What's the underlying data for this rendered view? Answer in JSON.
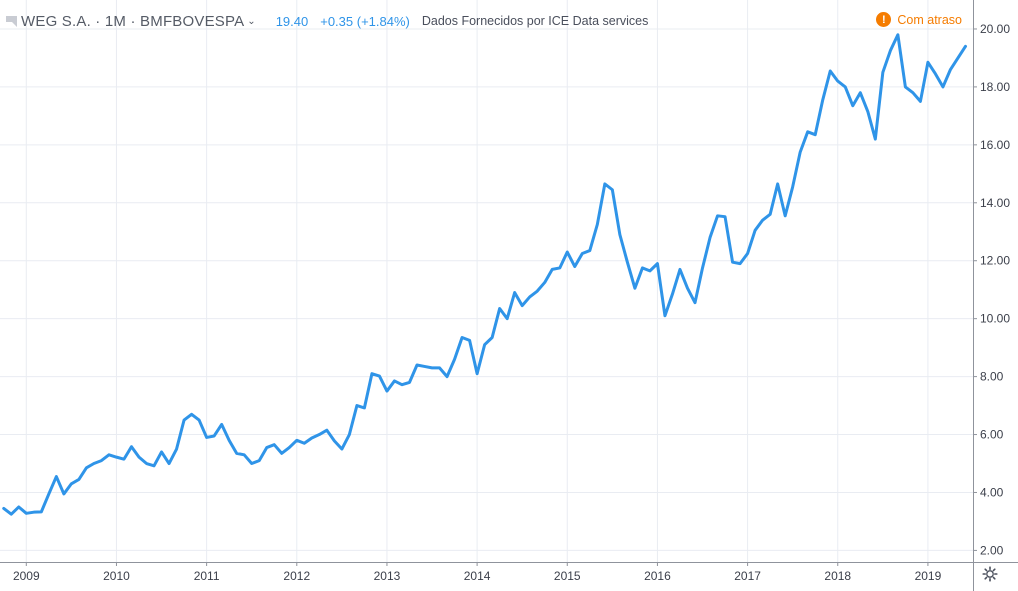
{
  "header": {
    "symbol_title": "WEG S.A. · 1M · BMFBOVESPA",
    "price": "19.40",
    "change": "+0.35 (+1.84%)",
    "provider": "Dados Fornecidos por ICE Data services",
    "delay_label": "Com atraso",
    "delay_icon": "!",
    "flag_icon_name": "flag-icon",
    "caret_icon_name": "chevron-down-icon"
  },
  "colors": {
    "line": "#2f94e8",
    "grid": "#e9ecf2",
    "axis_border": "#8f939c",
    "delay": "#f57c00",
    "text": "#3b3f4a"
  },
  "chart_data": {
    "type": "line",
    "title": "",
    "xlabel": "",
    "ylabel": "",
    "x_range": [
      "2008-10",
      "2019-07"
    ],
    "ylim": [
      1.6,
      21.0
    ],
    "y_ticks": [
      "2.00",
      "4.00",
      "6.00",
      "8.00",
      "10.00",
      "12.00",
      "14.00",
      "16.00",
      "18.00",
      "20.00"
    ],
    "x_ticks": [
      "2009",
      "2010",
      "2011",
      "2012",
      "2013",
      "2014",
      "2015",
      "2016",
      "2017",
      "2018",
      "2019"
    ],
    "grid": true,
    "y_axis_position": "right",
    "series": [
      {
        "x": [
          "2008-10",
          "2008-11",
          "2008-12",
          "2009-01",
          "2009-02",
          "2009-03",
          "2009-04",
          "2009-05",
          "2009-06",
          "2009-07",
          "2009-08",
          "2009-09",
          "2009-10",
          "2009-11",
          "2009-12",
          "2010-01",
          "2010-02",
          "2010-03",
          "2010-04",
          "2010-05",
          "2010-06",
          "2010-07",
          "2010-08",
          "2010-09",
          "2010-10",
          "2010-11",
          "2010-12",
          "2011-01",
          "2011-02",
          "2011-03",
          "2011-04",
          "2011-05",
          "2011-06",
          "2011-07",
          "2011-08",
          "2011-09",
          "2011-10",
          "2011-11",
          "2011-12",
          "2012-01",
          "2012-02",
          "2012-03",
          "2012-04",
          "2012-05",
          "2012-06",
          "2012-07",
          "2012-08",
          "2012-09",
          "2012-10",
          "2012-11",
          "2012-12",
          "2013-01",
          "2013-02",
          "2013-03",
          "2013-04",
          "2013-05",
          "2013-06",
          "2013-07",
          "2013-08",
          "2013-09",
          "2013-10",
          "2013-11",
          "2013-12",
          "2014-01",
          "2014-02",
          "2014-03",
          "2014-04",
          "2014-05",
          "2014-06",
          "2014-07",
          "2014-08",
          "2014-09",
          "2014-10",
          "2014-11",
          "2014-12",
          "2015-01",
          "2015-02",
          "2015-03",
          "2015-04",
          "2015-05",
          "2015-06",
          "2015-07",
          "2015-08",
          "2015-09",
          "2015-10",
          "2015-11",
          "2015-12",
          "2016-01",
          "2016-02",
          "2016-03",
          "2016-04",
          "2016-05",
          "2016-06",
          "2016-07",
          "2016-08",
          "2016-09",
          "2016-10",
          "2016-11",
          "2016-12",
          "2017-01",
          "2017-02",
          "2017-03",
          "2017-04",
          "2017-05",
          "2017-06",
          "2017-07",
          "2017-08",
          "2017-09",
          "2017-10",
          "2017-11",
          "2017-12",
          "2018-01",
          "2018-02",
          "2018-03",
          "2018-04",
          "2018-05",
          "2018-06",
          "2018-07",
          "2018-08",
          "2018-09",
          "2018-10",
          "2018-11",
          "2018-12",
          "2019-01",
          "2019-02",
          "2019-03",
          "2019-04",
          "2019-05",
          "2019-06"
        ],
        "values": [
          3.45,
          3.25,
          3.5,
          3.28,
          3.32,
          3.33,
          3.95,
          4.55,
          3.95,
          4.3,
          4.45,
          4.85,
          5.0,
          5.1,
          5.3,
          5.22,
          5.15,
          5.58,
          5.22,
          5.0,
          4.92,
          5.4,
          5.0,
          5.5,
          6.5,
          6.7,
          6.5,
          5.9,
          5.95,
          6.35,
          5.8,
          5.35,
          5.3,
          5.0,
          5.1,
          5.55,
          5.65,
          5.35,
          5.55,
          5.8,
          5.7,
          5.88,
          6.0,
          6.15,
          5.78,
          5.5,
          6.0,
          7.0,
          6.92,
          8.1,
          8.02,
          7.5,
          7.85,
          7.72,
          7.8,
          8.4,
          8.35,
          8.3,
          8.3,
          8.0,
          8.6,
          9.35,
          9.25,
          8.1,
          9.1,
          9.35,
          10.35,
          10.0,
          10.9,
          10.45,
          10.75,
          10.95,
          11.25,
          11.7,
          11.75,
          12.3,
          11.8,
          12.25,
          12.35,
          13.25,
          14.65,
          14.45,
          12.9,
          11.95,
          11.05,
          11.75,
          11.65,
          11.9,
          10.1,
          10.85,
          11.7,
          11.05,
          10.55,
          11.75,
          12.8,
          13.55,
          13.52,
          11.95,
          11.9,
          12.25,
          13.05,
          13.4,
          13.6,
          14.65,
          13.55,
          14.55,
          15.75,
          16.45,
          16.35,
          17.55,
          18.55,
          18.2,
          18.0,
          17.35,
          17.8,
          17.15,
          16.2,
          18.5,
          19.25,
          19.8,
          18.0,
          17.8,
          17.5,
          18.85,
          18.45,
          18.0,
          18.6,
          19.0,
          19.4
        ]
      }
    ]
  }
}
